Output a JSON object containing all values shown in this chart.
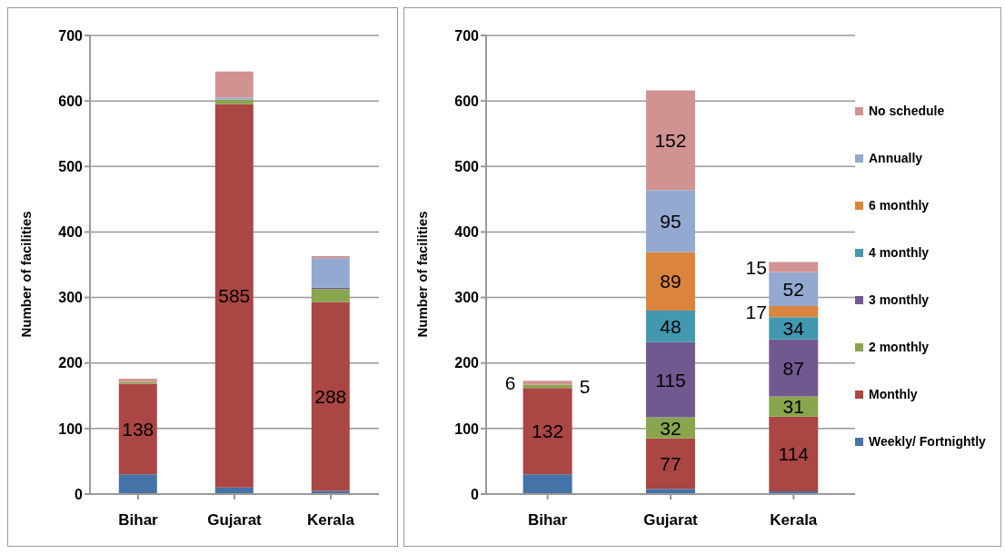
{
  "chart_data": [
    {
      "type": "bar",
      "stacked": true,
      "ylabel": "Number of facilities",
      "categories": [
        "Bihar",
        "Gujarat",
        "Kerala"
      ],
      "ylim": [
        0,
        700
      ],
      "yticks": [
        0,
        100,
        200,
        300,
        400,
        500,
        600,
        700
      ],
      "grid": "y",
      "legend": false,
      "series": [
        {
          "color": "#4572a7",
          "values": [
            30,
            10,
            5
          ]
        },
        {
          "color": "#aa4643",
          "values": [
            138,
            585,
            288
          ],
          "value_labels": [
            "138",
            "585",
            "288"
          ]
        },
        {
          "color": "#89a54e",
          "values": [
            3,
            7,
            20
          ]
        },
        {
          "color": "#71588f",
          "values": [
            null,
            null,
            2
          ]
        },
        {
          "color": "#93a9cf",
          "values": [
            null,
            3,
            45
          ]
        },
        {
          "color": "#d19392",
          "values": [
            5,
            40,
            3
          ]
        }
      ]
    },
    {
      "type": "bar",
      "stacked": true,
      "ylabel": "Number of facilities",
      "categories": [
        "Bihar",
        "Gujarat",
        "Kerala"
      ],
      "ylim": [
        0,
        700
      ],
      "yticks": [
        0,
        100,
        200,
        300,
        400,
        500,
        600,
        700
      ],
      "grid": "y",
      "legend": "right",
      "series": [
        {
          "name": "Weekly/ Fortnightly",
          "color": "#4572a7",
          "values": [
            30,
            8,
            4
          ]
        },
        {
          "name": "Monthly",
          "color": "#aa4643",
          "values": [
            132,
            77,
            114
          ],
          "value_labels": [
            "132",
            "77",
            "114"
          ]
        },
        {
          "name": "2 monthly",
          "color": "#89a54e",
          "values": [
            5,
            32,
            31
          ],
          "value_labels": [
            "5",
            "32",
            "31"
          ]
        },
        {
          "name": "3 monthly",
          "color": "#71588f",
          "values": [
            null,
            115,
            87
          ],
          "value_labels": [
            null,
            "115",
            "87"
          ]
        },
        {
          "name": "4 monthly",
          "color": "#4198af",
          "values": [
            null,
            48,
            34
          ],
          "value_labels": [
            null,
            "48",
            "34"
          ]
        },
        {
          "name": "6 monthly",
          "color": "#db843d",
          "values": [
            null,
            89,
            17
          ],
          "value_labels": [
            null,
            "89",
            "17"
          ]
        },
        {
          "name": "Annually",
          "color": "#93a9cf",
          "values": [
            null,
            95,
            52
          ],
          "value_labels": [
            null,
            "95",
            "52"
          ]
        },
        {
          "name": "No schedule",
          "color": "#d19392",
          "values": [
            6,
            152,
            15
          ],
          "value_labels": [
            "6",
            "152",
            "15"
          ]
        }
      ]
    }
  ]
}
